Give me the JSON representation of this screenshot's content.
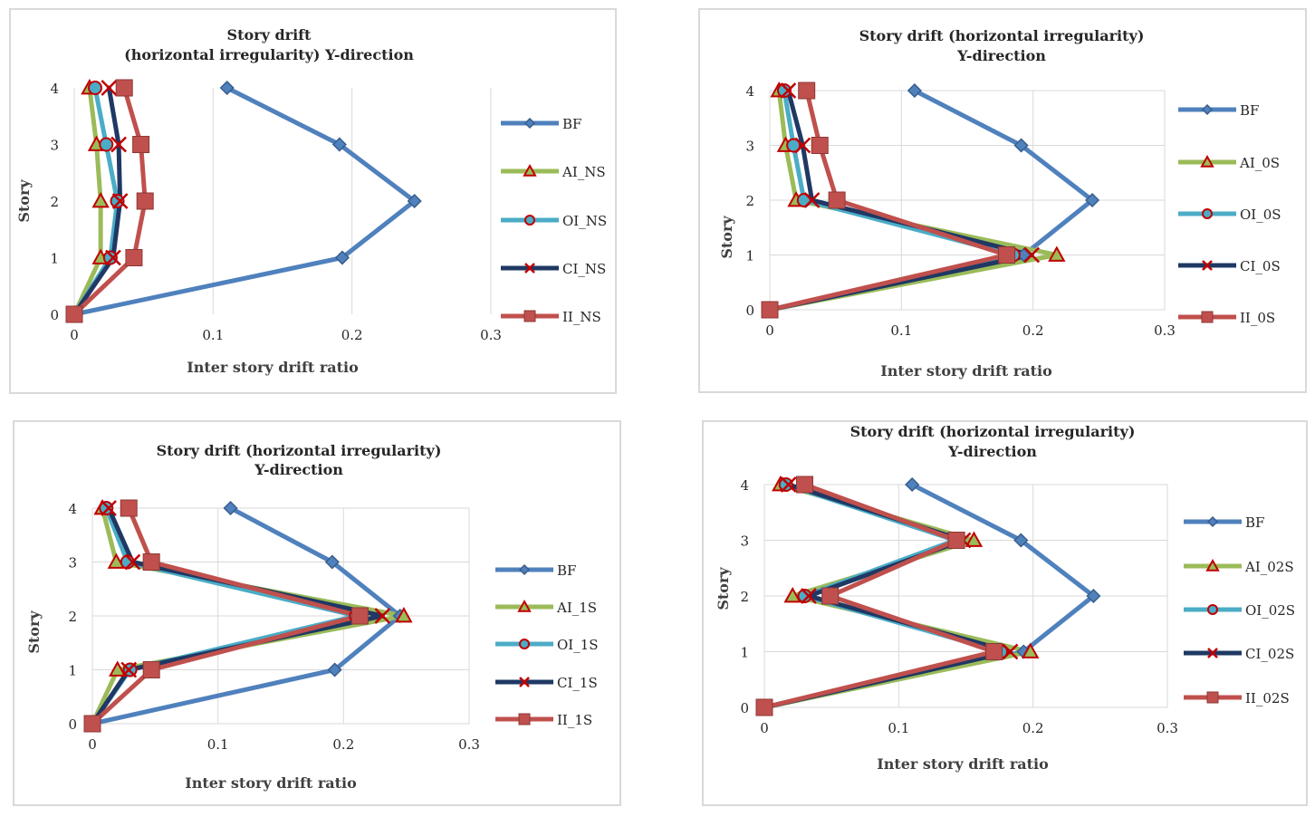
{
  "chart_data": [
    {
      "type": "line",
      "title": [
        "Story drift",
        "(horizontal irregularity) Y-direction"
      ],
      "xlabel": "Inter story drift ratio",
      "ylabel": "Story",
      "xlim": [
        0,
        0.3
      ],
      "ylim": [
        0,
        4
      ],
      "xticks": [
        "0",
        "0.1",
        "0.2",
        "0.3"
      ],
      "yticks": [
        "0",
        "1",
        "2",
        "3",
        "4"
      ],
      "grid": "vertical",
      "legend_position": "right",
      "series": [
        {
          "name": "BF",
          "color": "#4F81BD",
          "marker": "diamond",
          "x": [
            0,
            0.193,
            0.245,
            0.191,
            0.11
          ],
          "y": [
            0,
            1,
            2,
            3,
            4
          ]
        },
        {
          "name": "AI_NS",
          "color": "#9BBB59",
          "marker": "triangle",
          "x": [
            0,
            0.019,
            0.019,
            0.016,
            0.011
          ],
          "y": [
            0,
            1,
            2,
            3,
            4
          ]
        },
        {
          "name": "OI_NS",
          "color": "#4BACC6",
          "marker": "circle",
          "x": [
            0,
            0.026,
            0.031,
            0.023,
            0.015
          ],
          "y": [
            0,
            1,
            2,
            3,
            4
          ]
        },
        {
          "name": "CI_NS",
          "color": "#1F3864",
          "marker": "x",
          "x": [
            0,
            0.028,
            0.033,
            0.032,
            0.025
          ],
          "y": [
            0,
            1,
            2,
            3,
            4
          ]
        },
        {
          "name": "II_NS",
          "color": "#C0504D",
          "marker": "square",
          "x": [
            0,
            0.043,
            0.051,
            0.048,
            0.036
          ],
          "y": [
            0,
            1,
            2,
            3,
            4
          ]
        }
      ]
    },
    {
      "type": "line",
      "title": [
        "Story drift (horizontal irregularity)",
        "Y-direction"
      ],
      "xlabel": "Inter story drift ratio",
      "ylabel": "Story",
      "xlim": [
        0,
        0.3
      ],
      "ylim": [
        0,
        4
      ],
      "xticks": [
        "0",
        "0.1",
        "0.2",
        "0.3"
      ],
      "yticks": [
        "0",
        "1",
        "2",
        "3",
        "4"
      ],
      "grid": "both",
      "legend_position": "right",
      "series": [
        {
          "name": "BF",
          "color": "#4F81BD",
          "marker": "diamond",
          "x": [
            0,
            0.193,
            0.245,
            0.191,
            0.11
          ],
          "y": [
            0,
            1,
            2,
            3,
            4
          ]
        },
        {
          "name": "AI_0S",
          "color": "#9BBB59",
          "marker": "triangle",
          "x": [
            0,
            0.218,
            0.02,
            0.012,
            0.007
          ],
          "y": [
            0,
            1,
            2,
            3,
            4
          ]
        },
        {
          "name": "OI_0S",
          "color": "#4BACC6",
          "marker": "circle",
          "x": [
            0,
            0.185,
            0.026,
            0.018,
            0.011
          ],
          "y": [
            0,
            1,
            2,
            3,
            4
          ]
        },
        {
          "name": "CI_0S",
          "color": "#1F3864",
          "marker": "x",
          "x": [
            0,
            0.199,
            0.032,
            0.025,
            0.014
          ],
          "y": [
            0,
            1,
            2,
            3,
            4
          ]
        },
        {
          "name": "II_0S",
          "color": "#C0504D",
          "marker": "square",
          "x": [
            0,
            0.18,
            0.051,
            0.038,
            0.028
          ],
          "y": [
            0,
            1,
            2,
            3,
            4
          ]
        }
      ]
    },
    {
      "type": "line",
      "title": [
        "Story drift (horizontal irregularity)",
        "Y-direction"
      ],
      "xlabel": "Inter story drift ratio",
      "ylabel": "Story",
      "xlim": [
        0,
        0.3
      ],
      "ylim": [
        0,
        4
      ],
      "xticks": [
        "0",
        "0.1",
        "0.2",
        "0.3"
      ],
      "yticks": [
        "0",
        "1",
        "2",
        "3",
        "4"
      ],
      "grid": "both",
      "legend_position": "right",
      "series": [
        {
          "name": "BF",
          "color": "#4F81BD",
          "marker": "diamond",
          "x": [
            0,
            0.193,
            0.245,
            0.191,
            0.11
          ],
          "y": [
            0,
            1,
            2,
            3,
            4
          ]
        },
        {
          "name": "AI_1S",
          "color": "#9BBB59",
          "marker": "triangle",
          "x": [
            0,
            0.02,
            0.248,
            0.019,
            0.008
          ],
          "y": [
            0,
            1,
            2,
            3,
            4
          ]
        },
        {
          "name": "OI_1S",
          "color": "#4BACC6",
          "marker": "circle",
          "x": [
            0,
            0.03,
            0.21,
            0.028,
            0.011
          ],
          "y": [
            0,
            1,
            2,
            3,
            4
          ]
        },
        {
          "name": "CI_1S",
          "color": "#1F3864",
          "marker": "x",
          "x": [
            0,
            0.029,
            0.231,
            0.032,
            0.013
          ],
          "y": [
            0,
            1,
            2,
            3,
            4
          ]
        },
        {
          "name": "II_1S",
          "color": "#C0504D",
          "marker": "square",
          "x": [
            0,
            0.047,
            0.213,
            0.047,
            0.029
          ],
          "y": [
            0,
            1,
            2,
            3,
            4
          ]
        }
      ]
    },
    {
      "type": "line",
      "title": [
        "Story drift (horizontal irregularity)",
        "Y-direction"
      ],
      "xlabel": "Inter story drift ratio",
      "ylabel": "Story",
      "xlim": [
        0,
        0.3
      ],
      "ylim": [
        0,
        4
      ],
      "xticks": [
        "0",
        "0.1",
        "0.2",
        "0.3"
      ],
      "yticks": [
        "0",
        "1",
        "2",
        "3",
        "4"
      ],
      "grid": "both",
      "legend_position": "right",
      "series": [
        {
          "name": "BF",
          "color": "#4F81BD",
          "marker": "diamond",
          "x": [
            0,
            0.193,
            0.245,
            0.191,
            0.11
          ],
          "y": [
            0,
            1,
            2,
            3,
            4
          ]
        },
        {
          "name": "AI_02S",
          "color": "#9BBB59",
          "marker": "triangle",
          "x": [
            0,
            0.198,
            0.021,
            0.156,
            0.012
          ],
          "y": [
            0,
            1,
            2,
            3,
            4
          ]
        },
        {
          "name": "OI_02S",
          "color": "#4BACC6",
          "marker": "circle",
          "x": [
            0,
            0.176,
            0.03,
            0.142,
            0.016
          ],
          "y": [
            0,
            1,
            2,
            3,
            4
          ]
        },
        {
          "name": "CI_02S",
          "color": "#1F3864",
          "marker": "x",
          "x": [
            0,
            0.183,
            0.033,
            0.148,
            0.018
          ],
          "y": [
            0,
            1,
            2,
            3,
            4
          ]
        },
        {
          "name": "II_02S",
          "color": "#C0504D",
          "marker": "square",
          "x": [
            0,
            0.171,
            0.049,
            0.143,
            0.03
          ],
          "y": [
            0,
            1,
            2,
            3,
            4
          ]
        }
      ]
    }
  ]
}
